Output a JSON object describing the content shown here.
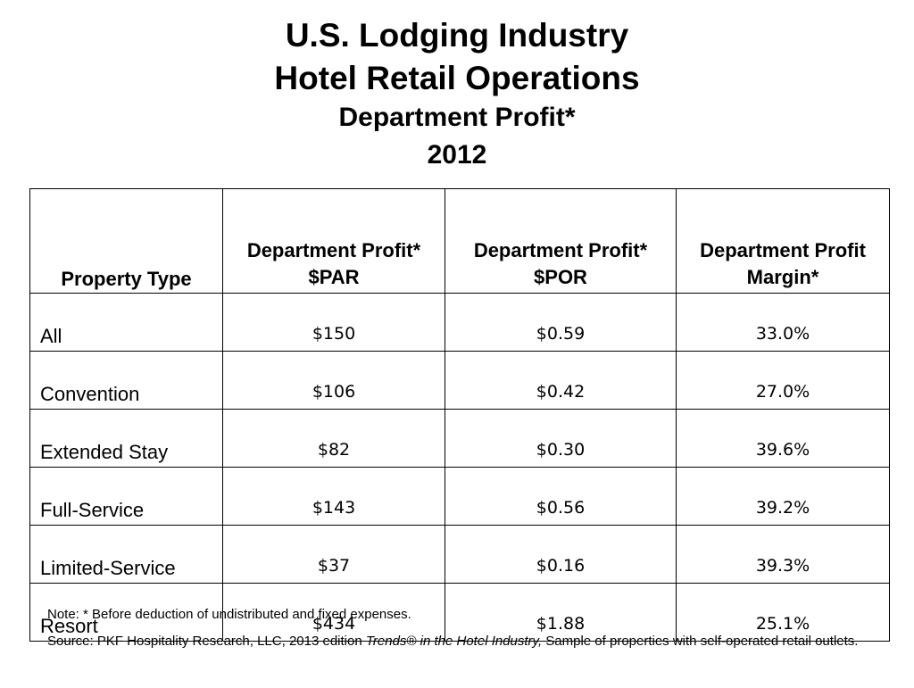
{
  "title": {
    "line1": "U.S. Lodging Industry",
    "line2": "Hotel Retail Operations",
    "line3": "Department Profit*",
    "line4": "2012"
  },
  "table": {
    "headers": {
      "property_type": "Property Type",
      "par": "Department Profit* $PAR",
      "por": "Department Profit* $POR",
      "margin": "Department Profit Margin*"
    },
    "rows": [
      {
        "type": "All",
        "par": "$150",
        "por": "$0.59",
        "margin": "33.0%"
      },
      {
        "type": "Convention",
        "par": "$106",
        "por": "$0.42",
        "margin": "27.0%"
      },
      {
        "type": "Extended Stay",
        "par": "$82",
        "por": "$0.30",
        "margin": "39.6%"
      },
      {
        "type": "Full-Service",
        "par": "$143",
        "por": "$0.56",
        "margin": "39.2%"
      },
      {
        "type": "Limited-Service",
        "par": "$37",
        "por": "$0.16",
        "margin": "39.3%"
      },
      {
        "type": "Resort",
        "par": "$434",
        "por": "$1.88",
        "margin": "25.1%"
      }
    ]
  },
  "footer": {
    "note": "Note: * Before deduction of undistributed and fixed expenses.",
    "source_prefix": "Source: PKF Hospitality Research, LLC, 2013 edition ",
    "source_italic": "Trends® in the Hotel Industry,",
    "source_suffix": " Sample of properties with self-operated retail outlets."
  }
}
